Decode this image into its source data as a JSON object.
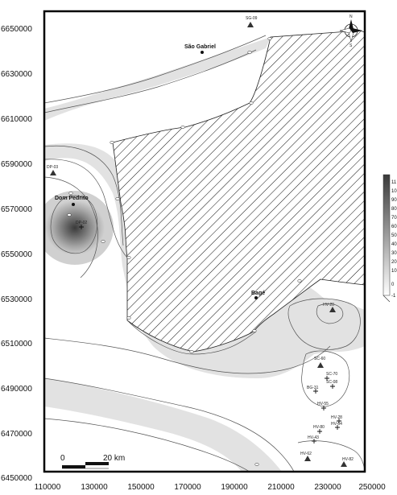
{
  "axes": {
    "x_ticks": [
      "110000",
      "130000",
      "150000",
      "170000",
      "190000",
      "210000",
      "230000",
      "250000"
    ],
    "y_ticks": [
      "6650000",
      "6630000",
      "6610000",
      "6590000",
      "6570000",
      "6550000",
      "6530000",
      "6510000",
      "6490000",
      "6470000",
      "6450000"
    ]
  },
  "places": [
    "São Gabriel",
    "Dom Pedrito",
    "Bagé"
  ],
  "stations": {
    "triangles": [
      "SG-09",
      "DP-03",
      "HV-20",
      "SC-60",
      "HV-62",
      "HV-82"
    ],
    "pluses": [
      "DP-02",
      "SC-70",
      "SC-08",
      "BG-31",
      "HV-55",
      "HV-28",
      "HV-64",
      "HV-80",
      "HV-43"
    ]
  },
  "scale_bar": {
    "start": "0",
    "end": "20 km"
  },
  "north_arrow": {
    "n": "N",
    "s": "S"
  },
  "legend": {
    "labels": [
      "11",
      "10",
      "90",
      "80",
      "70",
      "60",
      "50",
      "40",
      "30",
      "20",
      "10",
      "0",
      "-1"
    ]
  },
  "colors": {
    "frame": "#000000",
    "hatch_area": "#ffffff",
    "shade_low": "#e2e2e2",
    "shade_high": "#3a3a3a"
  }
}
